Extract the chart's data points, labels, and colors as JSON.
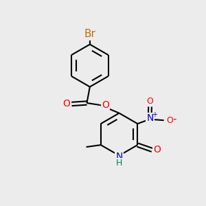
{
  "background_color": "#ececec",
  "bond_color": "#000000",
  "line_width": 1.5,
  "font_size_atom": 10,
  "br_color": "#cc6600",
  "o_color": "#ff0000",
  "n_color": "#0000cc",
  "h_color": "#008060",
  "figsize": [
    3.0,
    3.0
  ],
  "dpi": 100,
  "xlim": [
    0,
    10
  ],
  "ylim": [
    0,
    10
  ]
}
